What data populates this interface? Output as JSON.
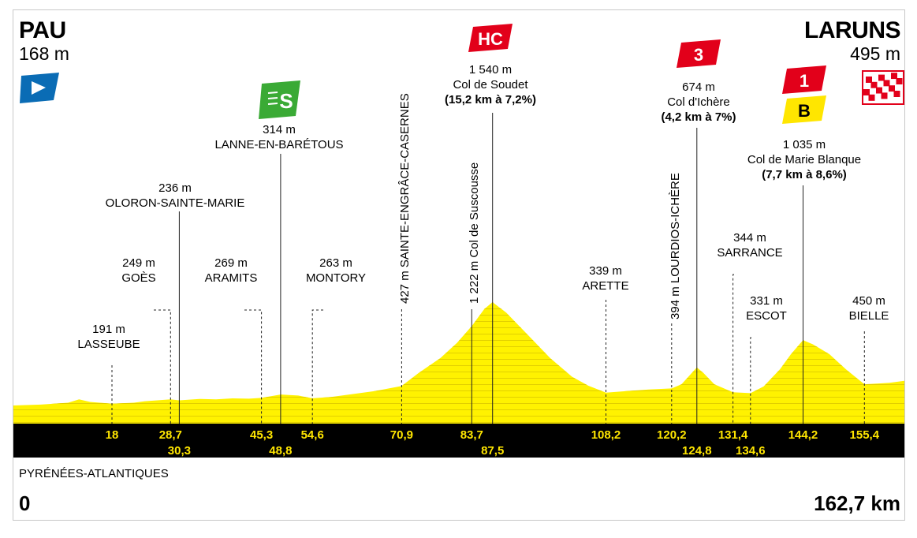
{
  "start": {
    "name": "PAU",
    "altitude": "168 m"
  },
  "finish": {
    "name": "LARUNS",
    "altitude": "495 m"
  },
  "footer": {
    "department": "PYRÉNÉES-ATLANTIQUES",
    "km_start": "0",
    "km_end": "162,7 km"
  },
  "colors": {
    "profile_fill": "#fff200",
    "profile_band": "#000000",
    "km_text": "#ffe600",
    "hc": "#e2001a",
    "sprint": "#3aaa35",
    "start_flag": "#0a6cb5"
  },
  "icons": {
    "start": "start-flag-icon",
    "finish": "checkered-flag-icon"
  },
  "chart_data": {
    "type": "area",
    "title": "",
    "xlabel": "",
    "ylabel": "",
    "xlim": [
      0,
      162.7
    ],
    "x": [
      0,
      5,
      10,
      12,
      14,
      18,
      22,
      24,
      27,
      28.7,
      30.3,
      34,
      37,
      40,
      43,
      45.3,
      48.8,
      52,
      54.6,
      58,
      62,
      66,
      70.9,
      74,
      78,
      81,
      83.7,
      86,
      87.5,
      90,
      94,
      98,
      102,
      105,
      108.2,
      112,
      116,
      120.2,
      122,
      124.8,
      126,
      128,
      131.4,
      134.6,
      137,
      140,
      142,
      144.2,
      146,
      149,
      152,
      155.4,
      158,
      160,
      162.7
    ],
    "y": [
      168,
      180,
      205,
      250,
      215,
      191,
      205,
      225,
      240,
      249,
      236,
      255,
      250,
      262,
      258,
      269,
      314,
      300,
      263,
      280,
      320,
      360,
      427,
      600,
      800,
      1000,
      1222,
      1450,
      1540,
      1400,
      1100,
      800,
      550,
      430,
      339,
      360,
      380,
      394,
      450,
      674,
      600,
      450,
      344,
      331,
      420,
      650,
      850,
      1035,
      980,
      850,
      650,
      450,
      460,
      470,
      495
    ],
    "points": [
      {
        "km": "18",
        "alt": "191 m",
        "name": "LASSEUBE"
      },
      {
        "km": "28,7",
        "alt": "249 m",
        "name": "GOÈS"
      },
      {
        "km": "30,3",
        "alt": "236 m",
        "name": "OLORON-SAINTE-MARIE"
      },
      {
        "km": "45,3",
        "alt": "269 m",
        "name": "ARAMITS"
      },
      {
        "km": "48,8",
        "alt": "314 m",
        "name": "LANNE-EN-BARÉTOUS"
      },
      {
        "km": "54,6",
        "alt": "263 m",
        "name": "MONTORY"
      },
      {
        "km": "70,9",
        "alt": "427 m",
        "name": "SAINTE-ENGRÂCE-CASERNES"
      },
      {
        "km": "83,7",
        "alt": "1 222 m",
        "name": "Col de Suscousse"
      },
      {
        "km": "87,5",
        "alt": "1 540 m",
        "name": "Col de Soudet",
        "climb": "(15,2 km à 7,2%)",
        "cat": "HC"
      },
      {
        "km": "108,2",
        "alt": "339 m",
        "name": "ARETTE"
      },
      {
        "km": "120,2",
        "alt": "394 m",
        "name": "LOURDIOS-ICHÈRE"
      },
      {
        "km": "124,8",
        "alt": "674 m",
        "name": "Col d'Ichère",
        "climb": "(4,2 km à 7%)",
        "cat": "3"
      },
      {
        "km": "131,4",
        "alt": "344 m",
        "name": "SARRANCE"
      },
      {
        "km": "134,6",
        "alt": "331 m",
        "name": "ESCOT"
      },
      {
        "km": "144,2",
        "alt": "1 035 m",
        "name": "Col de Marie Blanque",
        "climb": "(7,7 km à 8,6%)",
        "cat": "1",
        "bonus": "B"
      },
      {
        "km": "155,4",
        "alt": "450 m",
        "name": "BIELLE"
      }
    ],
    "sprint_label": "S"
  }
}
